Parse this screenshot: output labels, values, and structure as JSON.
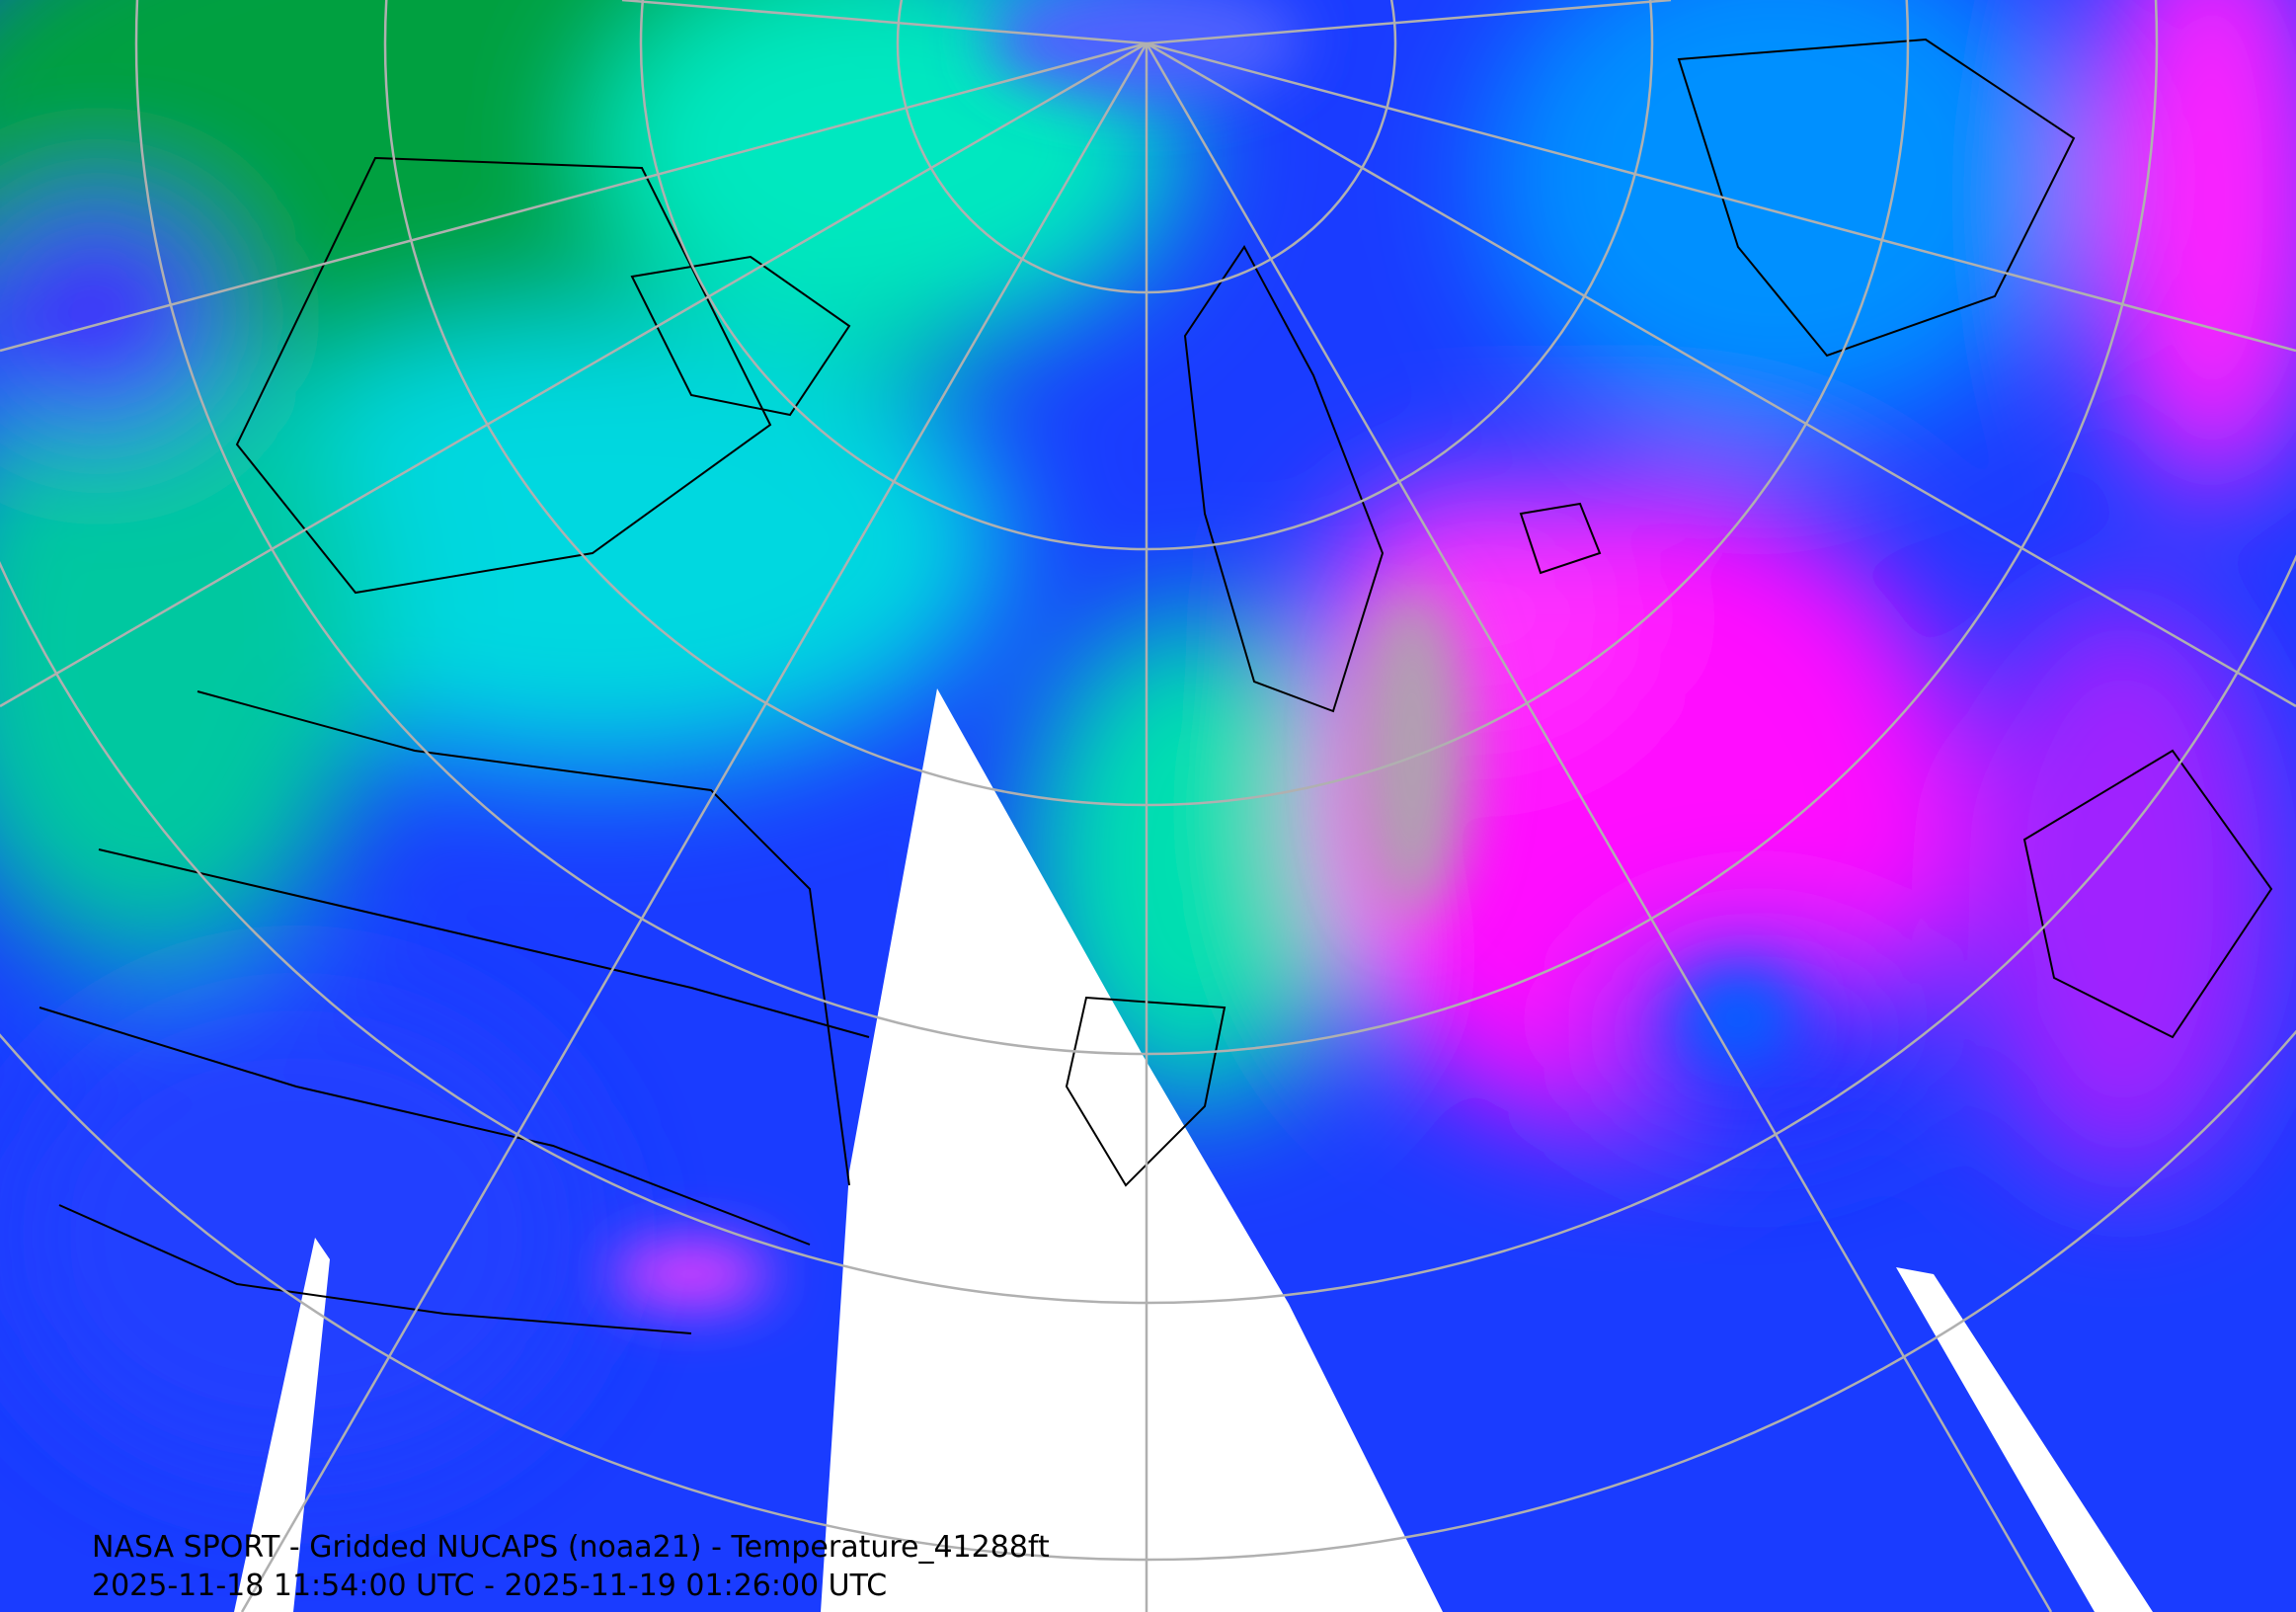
{
  "caption": {
    "title": "NASA SPORT - Gridded NUCAPS (noaa21) - Temperature_41288ft",
    "time_range": "2025-11-18 11:54:00 UTC - 2025-11-19 01:26:00 UTC"
  }
}
